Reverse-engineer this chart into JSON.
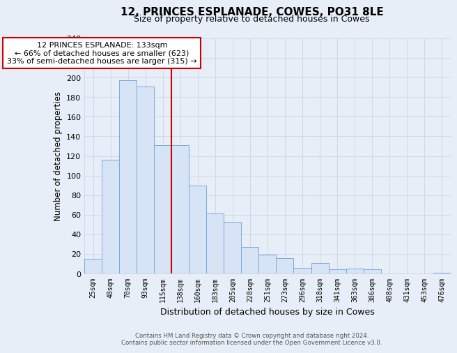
{
  "title": "12, PRINCES ESPLANADE, COWES, PO31 8LE",
  "subtitle": "Size of property relative to detached houses in Cowes",
  "xlabel": "Distribution of detached houses by size in Cowes",
  "ylabel": "Number of detached properties",
  "bar_labels": [
    "25sqm",
    "48sqm",
    "70sqm",
    "93sqm",
    "115sqm",
    "138sqm",
    "160sqm",
    "183sqm",
    "205sqm",
    "228sqm",
    "251sqm",
    "273sqm",
    "296sqm",
    "318sqm",
    "341sqm",
    "363sqm",
    "386sqm",
    "408sqm",
    "431sqm",
    "453sqm",
    "476sqm"
  ],
  "bar_values": [
    15,
    116,
    197,
    191,
    131,
    131,
    90,
    61,
    53,
    27,
    19,
    16,
    6,
    11,
    4,
    5,
    4,
    0,
    0,
    0,
    1
  ],
  "bar_color": "#d6e4f5",
  "bar_edge_color": "#7aaadc",
  "vline_x_index": 5,
  "vline_color": "#cc0000",
  "annotation_line1": "12 PRINCES ESPLANADE: 133sqm",
  "annotation_line2": "← 66% of detached houses are smaller (623)",
  "annotation_line3": "33% of semi-detached houses are larger (315) →",
  "annotation_box_fc": "#ffffff",
  "annotation_box_ec": "#cc0000",
  "ylim": [
    0,
    240
  ],
  "yticks": [
    0,
    20,
    40,
    60,
    80,
    100,
    120,
    140,
    160,
    180,
    200,
    220,
    240
  ],
  "grid_color": "#c8d4e8",
  "footer_text": "Contains HM Land Registry data © Crown copyright and database right 2024.\nContains public sector information licensed under the Open Government Licence v3.0.",
  "background_color": "#e8eef8"
}
